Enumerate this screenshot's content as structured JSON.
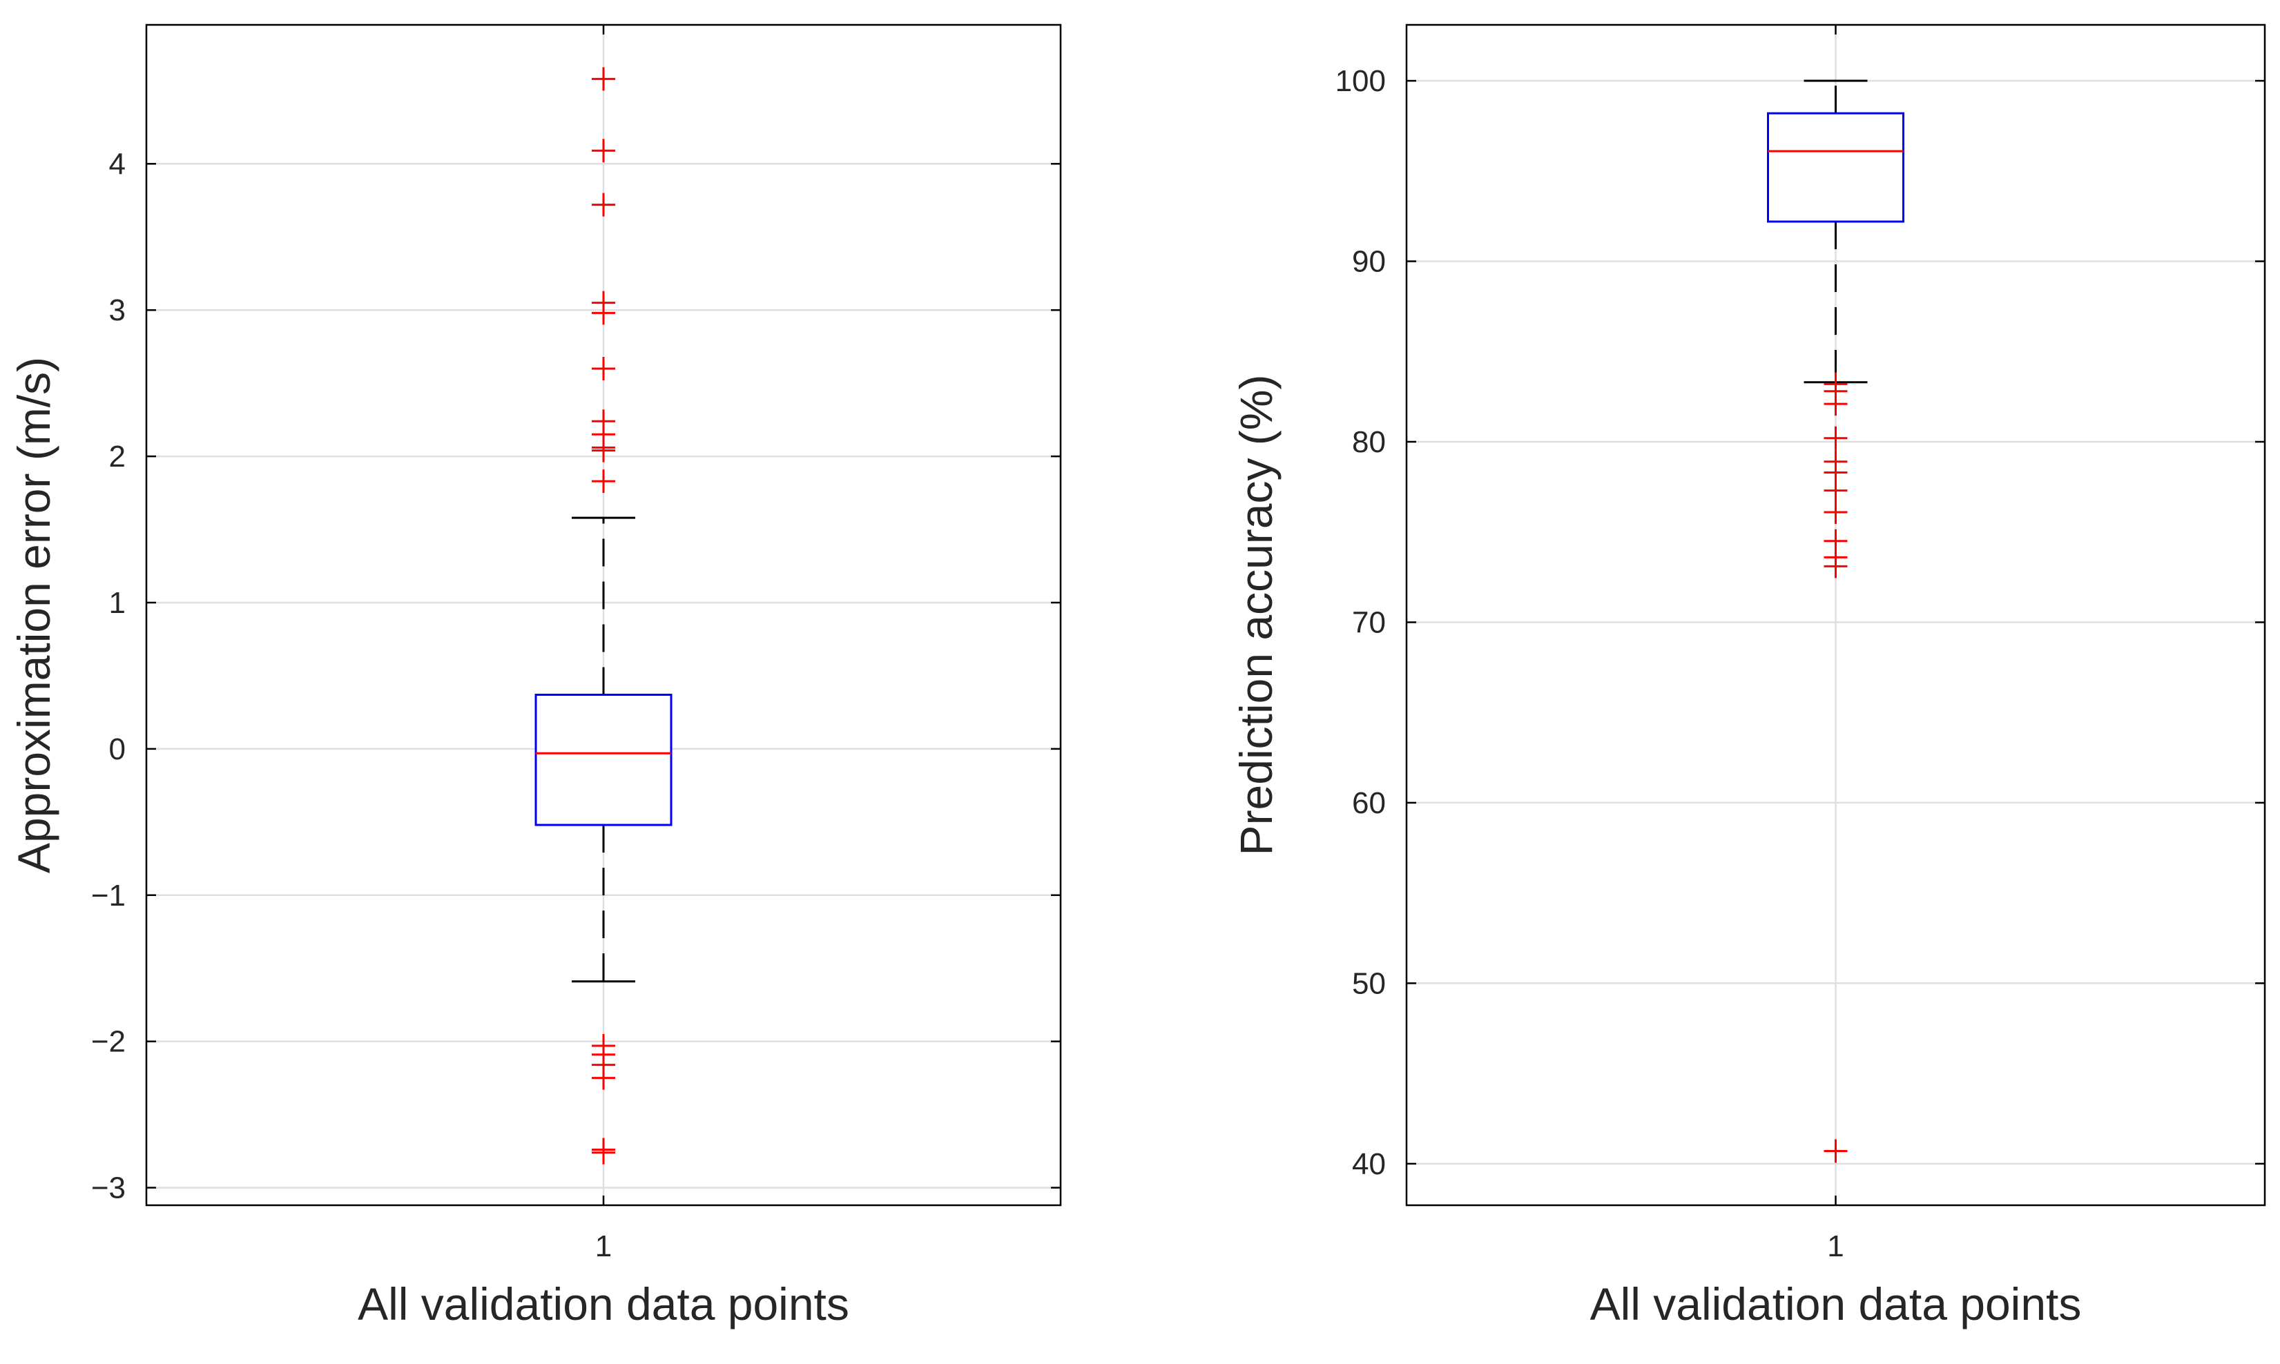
{
  "chart_data": [
    {
      "type": "boxplot",
      "xlabel": "All validation data points",
      "ylabel": "Approximation error (m/s)",
      "categories": [
        "1"
      ],
      "ylim": [
        -3.12,
        4.95
      ],
      "yticks": [
        -3,
        -2,
        -1,
        0,
        1,
        2,
        3,
        4
      ],
      "ytick_labels": [
        "−3",
        "−2",
        "−1",
        "0",
        "1",
        "2",
        "3",
        "4"
      ],
      "grid": true,
      "box": {
        "q1": -0.52,
        "median": -0.03,
        "q3": 0.37,
        "whisker_low": -1.59,
        "whisker_high": 1.58
      },
      "outliers": [
        4.58,
        4.09,
        3.72,
        3.05,
        2.98,
        2.6,
        2.24,
        2.15,
        2.06,
        2.04,
        1.83,
        -2.03,
        -2.09,
        -2.16,
        -2.25,
        -2.74,
        -2.76
      ]
    },
    {
      "type": "boxplot",
      "xlabel": "All validation data points",
      "ylabel": "Prediction accuracy (%)",
      "categories": [
        "1"
      ],
      "ylim": [
        37.7,
        103.1
      ],
      "yticks": [
        40,
        50,
        60,
        70,
        80,
        90,
        100
      ],
      "ytick_labels": [
        "40",
        "50",
        "60",
        "70",
        "80",
        "90",
        "100"
      ],
      "grid": true,
      "box": {
        "q1": 92.2,
        "median": 96.1,
        "q3": 98.2,
        "whisker_low": 83.3,
        "whisker_high": 100.0
      },
      "outliers": [
        83.2,
        82.8,
        82.1,
        80.2,
        78.9,
        78.3,
        77.3,
        76.1,
        74.5,
        73.6,
        73.1,
        40.7
      ]
    }
  ],
  "colors": {
    "box": "#0000ff",
    "median": "#ff0000",
    "outlier": "#ff0000",
    "whisker": "#000000",
    "grid": "#dfdfdf",
    "axis": "#000000",
    "text": "#262626"
  }
}
